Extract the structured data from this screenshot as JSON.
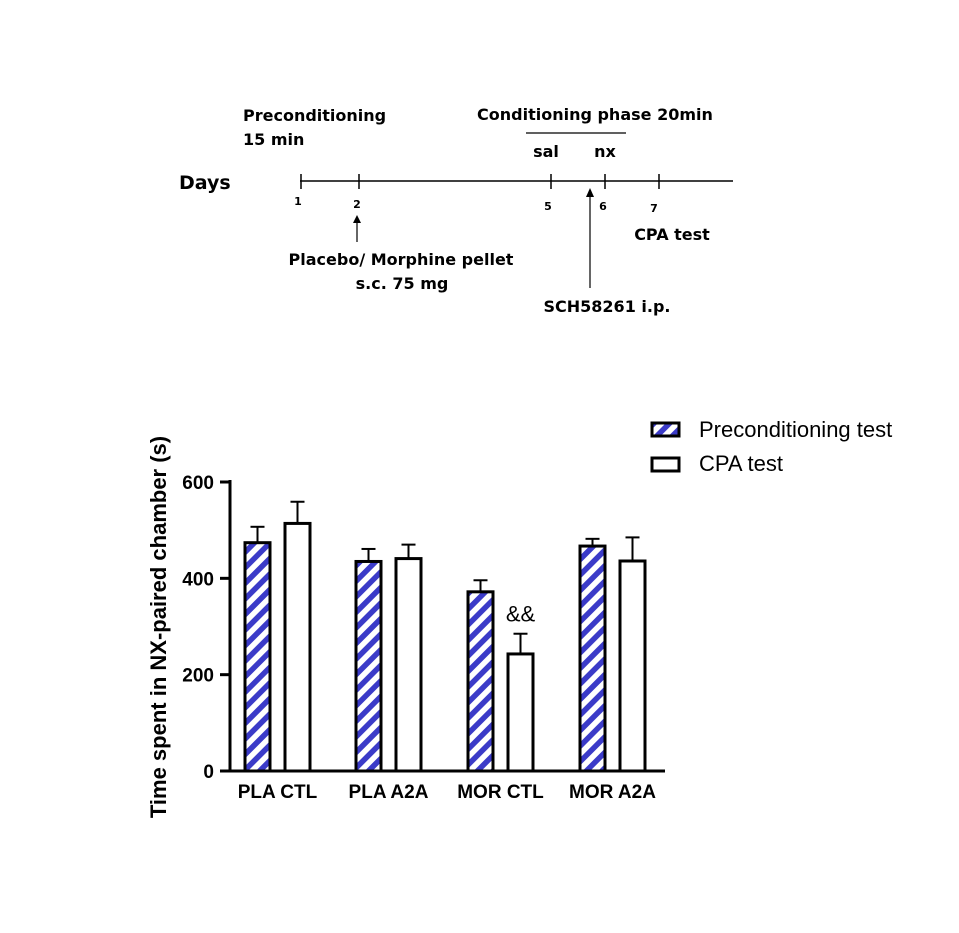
{
  "timeline": {
    "days_label": "Days",
    "preconditioning_line1": "Preconditioning",
    "preconditioning_line2": "15 min",
    "conditioning_label": "Conditioning phase 20min",
    "sal_label": "sal",
    "nx_label": "nx",
    "day_numbers": [
      "1",
      "2",
      "5",
      "6",
      "7"
    ],
    "cpa_test_label": "CPA test",
    "pellet_line1": "Placebo/ Morphine pellet",
    "pellet_line2": "s.c. 75 mg",
    "sch_label": "SCH58261 i.p."
  },
  "chart_data": {
    "type": "bar",
    "title": "",
    "xlabel": "",
    "ylabel": "Time spent in NX-paired chamber (s)",
    "ylim": [
      0,
      600
    ],
    "yticks": [
      "0",
      "200",
      "400",
      "600"
    ],
    "categories": [
      "PLA CTL",
      "PLA A2A",
      "MOR CTL",
      "MOR A2A"
    ],
    "series": [
      {
        "name": "Preconditioning test",
        "pattern": "blue-diagonal-hatch",
        "color": "#3b3bc8",
        "values": [
          474,
          435,
          372,
          467
        ],
        "errors": [
          33,
          26,
          24,
          15
        ]
      },
      {
        "name": "CPA test",
        "pattern": "white",
        "color": "#ffffff",
        "values": [
          514,
          441,
          243,
          436
        ],
        "errors": [
          45,
          29,
          42,
          49
        ]
      }
    ],
    "annotations": [
      {
        "category": "MOR CTL",
        "series": "CPA test",
        "text": "&&"
      }
    ],
    "legend_position": "top-right"
  }
}
